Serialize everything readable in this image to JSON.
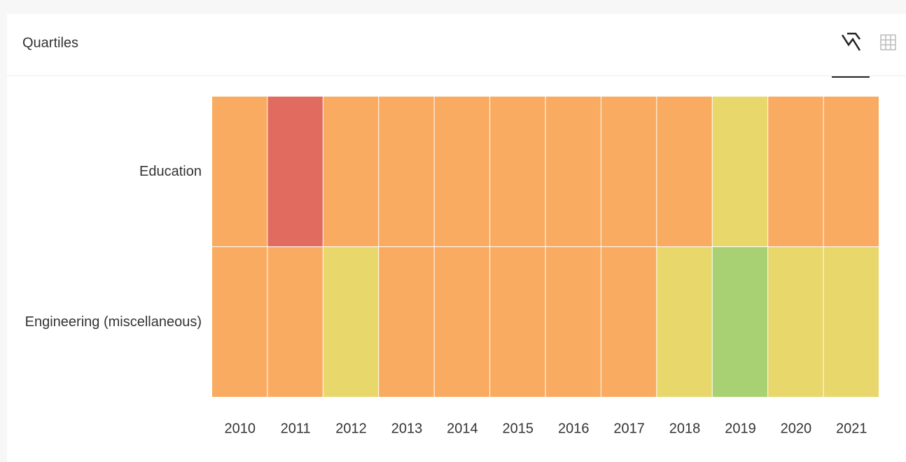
{
  "chart_data": {
    "type": "heatmap",
    "title": "Quartiles",
    "categories": [
      "2010",
      "2011",
      "2012",
      "2013",
      "2014",
      "2015",
      "2016",
      "2017",
      "2018",
      "2019",
      "2020",
      "2021"
    ],
    "series": [
      {
        "name": "Education",
        "values": [
          3,
          4,
          3,
          3,
          3,
          3,
          3,
          3,
          3,
          2,
          3,
          3
        ]
      },
      {
        "name": "Engineering (miscellaneous)",
        "values": [
          3,
          3,
          2,
          3,
          3,
          3,
          3,
          3,
          2,
          1,
          2,
          2
        ]
      }
    ],
    "colors": [
      "#a8d173",
      "#e8d86b",
      "#f9ab62",
      "#e06b5e"
    ]
  }
}
